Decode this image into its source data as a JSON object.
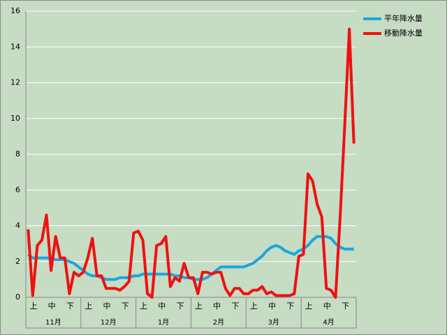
{
  "chart_data": {
    "type": "line",
    "categories": [
      null,
      "上",
      null,
      null,
      null,
      "中",
      null,
      null,
      null,
      "下",
      null,
      null,
      null,
      "上",
      null,
      null,
      null,
      "中",
      null,
      null,
      null,
      "下",
      null,
      null,
      null,
      "上",
      null,
      null,
      null,
      "中",
      null,
      null,
      null,
      "下",
      null,
      null,
      null,
      "上",
      null,
      null,
      null,
      "中",
      null,
      null,
      null,
      "下",
      null,
      null,
      null,
      "上",
      null,
      null,
      null,
      "中",
      null,
      null,
      null,
      "下",
      null,
      null,
      null,
      "上",
      null,
      null,
      null,
      "中",
      null,
      null,
      null,
      "下",
      null,
      null
    ],
    "groups": [
      "11月",
      "12月",
      "1月",
      "2月",
      "3月",
      "4月"
    ],
    "series": [
      {
        "name": "平年降水量",
        "color": "#1aa7e0",
        "values": [
          2.4,
          2.2,
          2.2,
          2.2,
          2.2,
          2.2,
          2.1,
          2.1,
          2.1,
          2.0,
          1.9,
          1.7,
          1.5,
          1.3,
          1.2,
          1.2,
          1.1,
          1.0,
          1.0,
          1.0,
          1.1,
          1.1,
          1.1,
          1.2,
          1.2,
          1.3,
          1.3,
          1.3,
          1.3,
          1.3,
          1.3,
          1.3,
          1.2,
          1.2,
          1.1,
          1.1,
          1.0,
          1.0,
          1.0,
          1.1,
          1.3,
          1.5,
          1.7,
          1.7,
          1.7,
          1.7,
          1.7,
          1.7,
          1.8,
          1.9,
          2.1,
          2.3,
          2.6,
          2.8,
          2.9,
          2.8,
          2.6,
          2.5,
          2.4,
          2.6,
          2.7,
          2.9,
          3.2,
          3.4,
          3.4,
          3.4,
          3.3,
          3.0,
          2.8,
          2.7,
          2.7,
          2.7
        ]
      },
      {
        "name": "移動降水量",
        "color": "#ee1111",
        "values": [
          3.8,
          0.1,
          2.9,
          3.2,
          4.6,
          1.5,
          3.4,
          2.2,
          2.2,
          0.2,
          1.4,
          1.2,
          1.4,
          2.2,
          3.3,
          1.2,
          1.2,
          0.5,
          0.5,
          0.5,
          0.4,
          0.6,
          0.9,
          3.6,
          3.7,
          3.2,
          0.2,
          0.0,
          2.9,
          3.0,
          3.4,
          0.6,
          1.1,
          0.9,
          1.9,
          1.1,
          1.1,
          0.2,
          1.4,
          1.4,
          1.3,
          1.4,
          1.4,
          0.5,
          0.1,
          0.5,
          0.5,
          0.2,
          0.2,
          0.4,
          0.4,
          0.6,
          0.2,
          0.3,
          0.1,
          0.1,
          0.1,
          0.1,
          0.2,
          2.3,
          2.4,
          6.9,
          6.5,
          5.2,
          4.5,
          0.5,
          0.4,
          0.0,
          4.5,
          9.6,
          15,
          8.6
        ]
      }
    ],
    "ylim": [
      0,
      16
    ],
    "yticks": [
      0,
      2,
      4,
      6,
      8,
      10,
      12,
      14,
      16
    ],
    "grid": true,
    "legend": "right"
  }
}
